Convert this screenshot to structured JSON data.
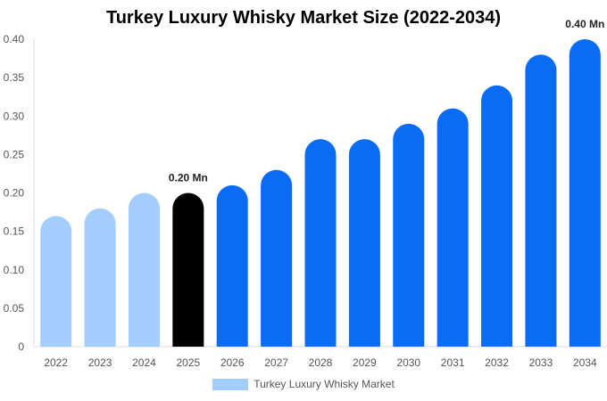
{
  "chart_data": {
    "type": "bar",
    "title": "Turkey Luxury Whisky Market Size (2022-2034)",
    "categories": [
      "2022",
      "2023",
      "2024",
      "2025",
      "2026",
      "2027",
      "2028",
      "2029",
      "2030",
      "2031",
      "2032",
      "2033",
      "2034"
    ],
    "series": [
      {
        "name": "Turkey Luxury Whisky Market",
        "values": [
          0.17,
          0.18,
          0.2,
          0.2,
          0.21,
          0.23,
          0.27,
          0.27,
          0.29,
          0.31,
          0.34,
          0.38,
          0.4
        ]
      }
    ],
    "ylim": [
      0,
      0.4
    ],
    "yticks": [
      "0",
      "0.05",
      "0.10",
      "0.15",
      "0.20",
      "0.25",
      "0.30",
      "0.35",
      "0.40"
    ],
    "data_labels": [
      {
        "category": "2025",
        "text": "0.20 Mn"
      },
      {
        "category": "2034",
        "text": "0.40 Mn"
      }
    ],
    "bar_colors": {
      "historical": "#a3cdfc",
      "current": "#000000",
      "forecast": "#0a6cf5"
    },
    "bar_phase": [
      "historical",
      "historical",
      "historical",
      "current",
      "forecast",
      "forecast",
      "forecast",
      "forecast",
      "forecast",
      "forecast",
      "forecast",
      "forecast",
      "forecast"
    ],
    "grid": false,
    "legend_position": "bottom-center"
  }
}
